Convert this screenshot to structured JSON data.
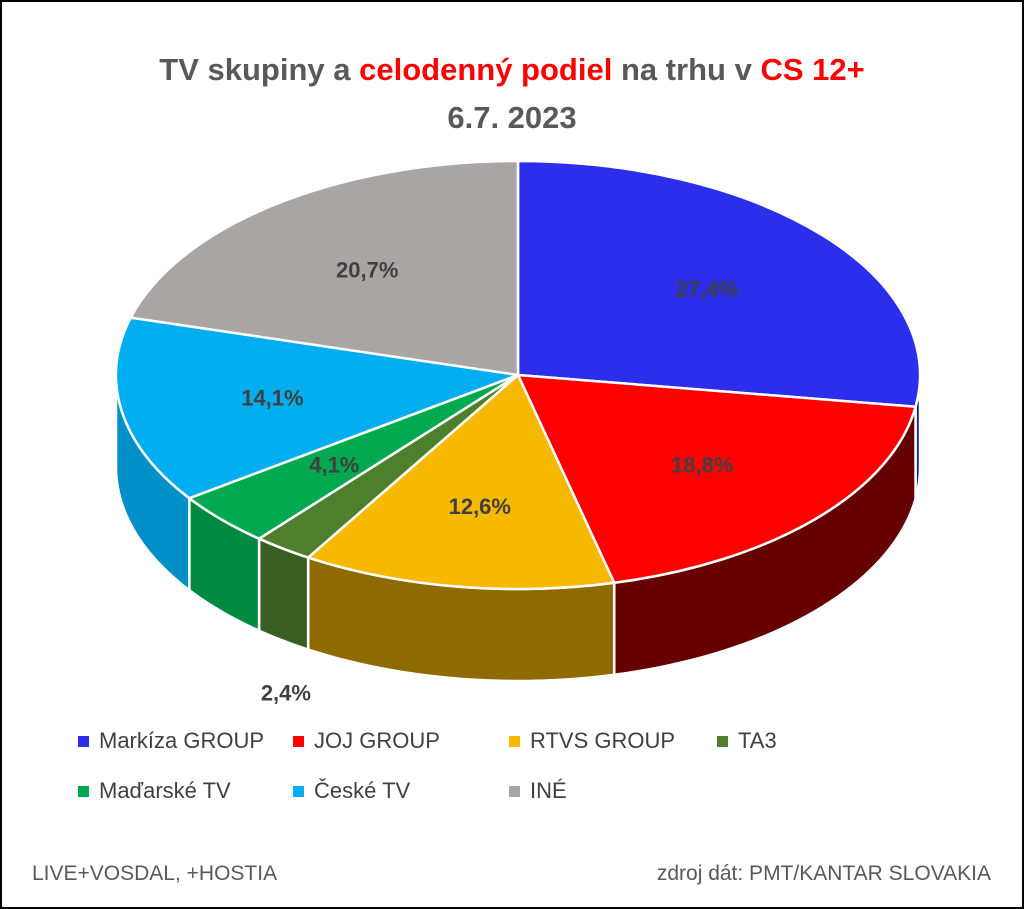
{
  "title": {
    "part1": "TV skupiny a ",
    "highlight1": "celodenný podiel",
    "part2": " na trhu v ",
    "highlight2": "CS 12+",
    "line2": "6.7. 2023"
  },
  "colors": {
    "title_gray": "#595959",
    "highlight": "#ff0000",
    "label": "#404040"
  },
  "chart_data": {
    "type": "pie",
    "style": "3d",
    "categories": [
      "Markíza GROUP",
      "JOJ GROUP",
      "RTVS GROUP",
      "TA3",
      "Maďarské  TV",
      "České  TV",
      "INÉ"
    ],
    "values": [
      27.4,
      18.8,
      12.6,
      2.4,
      4.1,
      14.1,
      20.7
    ],
    "labels": [
      "27,4%",
      "18,8%",
      "12,6%",
      "2,4%",
      "4,1%",
      "14,1%",
      "20,7%"
    ],
    "colors": [
      "#2b2eea",
      "#ff0000",
      "#f7b800",
      "#4d7f2c",
      "#00a84f",
      "#00aeef",
      "#a9a5a5"
    ],
    "side_colors": [
      "#1a1c8a",
      "#660000",
      "#8f6a00",
      "#3a5e21",
      "#008a3f",
      "#0090c8",
      "#807c7c"
    ],
    "legend_position": "bottom"
  },
  "footer": {
    "left": "LIVE+VOSDAL,  +HOSTIA",
    "right": "zdroj dát: PMT/KANTAR SLOVAKIA"
  }
}
